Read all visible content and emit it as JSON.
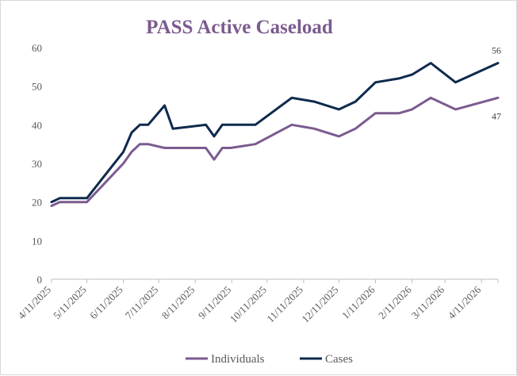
{
  "chart_data": {
    "type": "line",
    "title": "PASS Active Caseload",
    "xlabel": "",
    "ylabel": "",
    "ylim": [
      0,
      60
    ],
    "yticks": [
      0,
      10,
      20,
      30,
      40,
      50,
      60
    ],
    "x_tick_labels": [
      "4/11/2025",
      "5/11/2025",
      "6/11/2025",
      "7/11/2025",
      "8/11/2025",
      "9/11/2025",
      "10/11/2025",
      "11/11/2025",
      "12/11/2025",
      "1/11/2026",
      "2/11/2026",
      "3/11/2026",
      "4/11/2026"
    ],
    "x_range": [
      "2025-04-11",
      "2026-04-25"
    ],
    "grid": false,
    "legend_position": "bottom",
    "series": [
      {
        "name": "Individuals",
        "color": "#7b5b8f",
        "end_label": "47",
        "points": [
          {
            "x": "2025-04-11",
            "y": 19
          },
          {
            "x": "2025-04-18",
            "y": 20
          },
          {
            "x": "2025-05-11",
            "y": 20
          },
          {
            "x": "2025-06-11",
            "y": 30
          },
          {
            "x": "2025-06-18",
            "y": 33
          },
          {
            "x": "2025-06-25",
            "y": 35
          },
          {
            "x": "2025-07-02",
            "y": 35
          },
          {
            "x": "2025-07-16",
            "y": 34
          },
          {
            "x": "2025-08-20",
            "y": 34
          },
          {
            "x": "2025-08-27",
            "y": 31
          },
          {
            "x": "2025-09-03",
            "y": 34
          },
          {
            "x": "2025-09-10",
            "y": 34
          },
          {
            "x": "2025-10-01",
            "y": 35
          },
          {
            "x": "2025-11-01",
            "y": 40
          },
          {
            "x": "2025-11-20",
            "y": 39
          },
          {
            "x": "2025-12-11",
            "y": 37
          },
          {
            "x": "2025-12-25",
            "y": 39
          },
          {
            "x": "2026-01-11",
            "y": 43
          },
          {
            "x": "2026-01-31",
            "y": 43
          },
          {
            "x": "2026-02-11",
            "y": 44
          },
          {
            "x": "2026-02-27",
            "y": 47
          },
          {
            "x": "2026-03-20",
            "y": 44
          },
          {
            "x": "2026-04-25",
            "y": 47
          }
        ]
      },
      {
        "name": "Cases",
        "color": "#0e2a4d",
        "end_label": "56",
        "points": [
          {
            "x": "2025-04-11",
            "y": 20
          },
          {
            "x": "2025-04-18",
            "y": 21
          },
          {
            "x": "2025-05-11",
            "y": 21
          },
          {
            "x": "2025-06-11",
            "y": 33
          },
          {
            "x": "2025-06-18",
            "y": 38
          },
          {
            "x": "2025-06-25",
            "y": 40
          },
          {
            "x": "2025-07-02",
            "y": 40
          },
          {
            "x": "2025-07-16",
            "y": 45
          },
          {
            "x": "2025-07-23",
            "y": 39
          },
          {
            "x": "2025-08-20",
            "y": 40
          },
          {
            "x": "2025-08-27",
            "y": 37
          },
          {
            "x": "2025-09-03",
            "y": 40
          },
          {
            "x": "2025-09-10",
            "y": 40
          },
          {
            "x": "2025-10-01",
            "y": 40
          },
          {
            "x": "2025-11-01",
            "y": 47
          },
          {
            "x": "2025-11-20",
            "y": 46
          },
          {
            "x": "2025-12-11",
            "y": 44
          },
          {
            "x": "2025-12-25",
            "y": 46
          },
          {
            "x": "2026-01-11",
            "y": 51
          },
          {
            "x": "2026-01-31",
            "y": 52
          },
          {
            "x": "2026-02-11",
            "y": 53
          },
          {
            "x": "2026-02-27",
            "y": 56
          },
          {
            "x": "2026-03-20",
            "y": 51
          },
          {
            "x": "2026-04-25",
            "y": 56
          }
        ]
      }
    ]
  },
  "colors": {
    "title": "#7b5b8f",
    "axis": "#bfbfbf",
    "tick_text": "#595959"
  }
}
